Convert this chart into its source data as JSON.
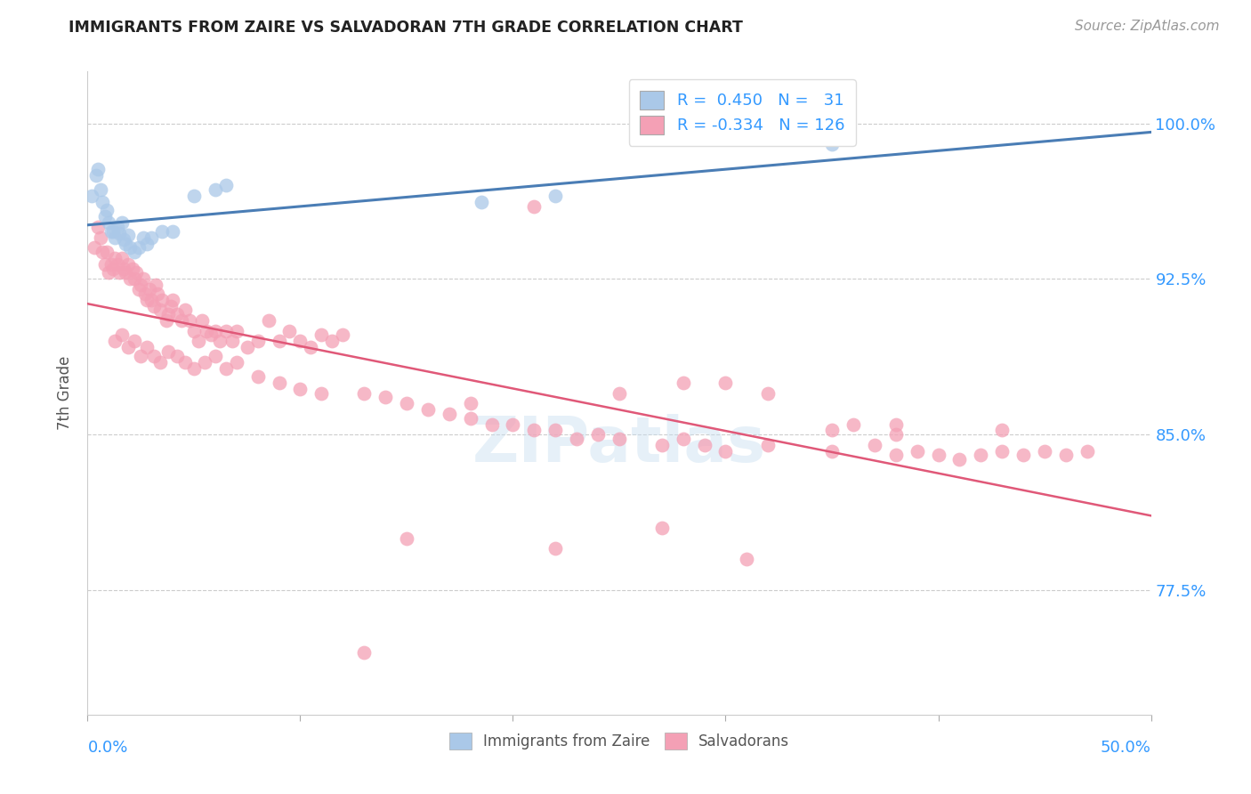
{
  "title": "IMMIGRANTS FROM ZAIRE VS SALVADORAN 7TH GRADE CORRELATION CHART",
  "source": "Source: ZipAtlas.com",
  "ylabel": "7th Grade",
  "ytick_values": [
    1.0,
    0.925,
    0.85,
    0.775
  ],
  "xlim": [
    0.0,
    0.5
  ],
  "ylim": [
    0.715,
    1.025
  ],
  "legend_blue_r": "0.450",
  "legend_blue_n": "31",
  "legend_pink_r": "-0.334",
  "legend_pink_n": "126",
  "blue_color": "#aac8e8",
  "blue_line_color": "#4a7db5",
  "pink_color": "#f4a0b5",
  "pink_line_color": "#e05878",
  "blue_scatter_x": [
    0.002,
    0.004,
    0.005,
    0.006,
    0.007,
    0.008,
    0.009,
    0.01,
    0.011,
    0.012,
    0.013,
    0.014,
    0.015,
    0.016,
    0.017,
    0.018,
    0.019,
    0.02,
    0.022,
    0.024,
    0.026,
    0.028,
    0.03,
    0.035,
    0.04,
    0.05,
    0.06,
    0.065,
    0.185,
    0.22,
    0.35
  ],
  "blue_scatter_y": [
    0.965,
    0.975,
    0.978,
    0.968,
    0.962,
    0.955,
    0.958,
    0.952,
    0.948,
    0.948,
    0.945,
    0.95,
    0.947,
    0.952,
    0.944,
    0.942,
    0.946,
    0.94,
    0.938,
    0.94,
    0.945,
    0.942,
    0.945,
    0.948,
    0.948,
    0.965,
    0.968,
    0.97,
    0.962,
    0.965,
    0.99
  ],
  "pink_scatter_x": [
    0.003,
    0.005,
    0.006,
    0.007,
    0.008,
    0.009,
    0.01,
    0.011,
    0.012,
    0.013,
    0.014,
    0.015,
    0.016,
    0.017,
    0.018,
    0.019,
    0.02,
    0.021,
    0.022,
    0.023,
    0.024,
    0.025,
    0.026,
    0.027,
    0.028,
    0.029,
    0.03,
    0.031,
    0.032,
    0.033,
    0.034,
    0.035,
    0.037,
    0.038,
    0.039,
    0.04,
    0.042,
    0.044,
    0.046,
    0.048,
    0.05,
    0.052,
    0.054,
    0.056,
    0.058,
    0.06,
    0.062,
    0.065,
    0.068,
    0.07,
    0.075,
    0.08,
    0.085,
    0.09,
    0.095,
    0.1,
    0.105,
    0.11,
    0.115,
    0.12,
    0.013,
    0.016,
    0.019,
    0.022,
    0.025,
    0.028,
    0.031,
    0.034,
    0.038,
    0.042,
    0.046,
    0.05,
    0.055,
    0.06,
    0.065,
    0.07,
    0.08,
    0.09,
    0.1,
    0.11,
    0.13,
    0.14,
    0.15,
    0.16,
    0.17,
    0.18,
    0.19,
    0.2,
    0.21,
    0.22,
    0.23,
    0.24,
    0.25,
    0.27,
    0.28,
    0.29,
    0.3,
    0.32,
    0.35,
    0.37,
    0.38,
    0.39,
    0.4,
    0.41,
    0.42,
    0.43,
    0.44,
    0.45,
    0.46,
    0.47,
    0.21,
    0.25,
    0.3,
    0.32,
    0.36,
    0.38,
    0.18,
    0.28,
    0.35,
    0.43,
    0.22,
    0.27,
    0.31,
    0.15,
    0.13,
    0.38
  ],
  "pink_scatter_y": [
    0.94,
    0.95,
    0.945,
    0.938,
    0.932,
    0.938,
    0.928,
    0.932,
    0.93,
    0.935,
    0.932,
    0.928,
    0.935,
    0.93,
    0.928,
    0.932,
    0.925,
    0.93,
    0.925,
    0.928,
    0.92,
    0.922,
    0.925,
    0.918,
    0.915,
    0.92,
    0.915,
    0.912,
    0.922,
    0.918,
    0.91,
    0.915,
    0.905,
    0.908,
    0.912,
    0.915,
    0.908,
    0.905,
    0.91,
    0.905,
    0.9,
    0.895,
    0.905,
    0.9,
    0.898,
    0.9,
    0.895,
    0.9,
    0.895,
    0.9,
    0.892,
    0.895,
    0.905,
    0.895,
    0.9,
    0.895,
    0.892,
    0.898,
    0.895,
    0.898,
    0.895,
    0.898,
    0.892,
    0.895,
    0.888,
    0.892,
    0.888,
    0.885,
    0.89,
    0.888,
    0.885,
    0.882,
    0.885,
    0.888,
    0.882,
    0.885,
    0.878,
    0.875,
    0.872,
    0.87,
    0.87,
    0.868,
    0.865,
    0.862,
    0.86,
    0.858,
    0.855,
    0.855,
    0.852,
    0.852,
    0.848,
    0.85,
    0.848,
    0.845,
    0.848,
    0.845,
    0.842,
    0.845,
    0.842,
    0.845,
    0.84,
    0.842,
    0.84,
    0.838,
    0.84,
    0.842,
    0.84,
    0.842,
    0.84,
    0.842,
    0.96,
    0.87,
    0.875,
    0.87,
    0.855,
    0.85,
    0.865,
    0.875,
    0.852,
    0.852,
    0.795,
    0.805,
    0.79,
    0.8,
    0.745,
    0.855
  ]
}
